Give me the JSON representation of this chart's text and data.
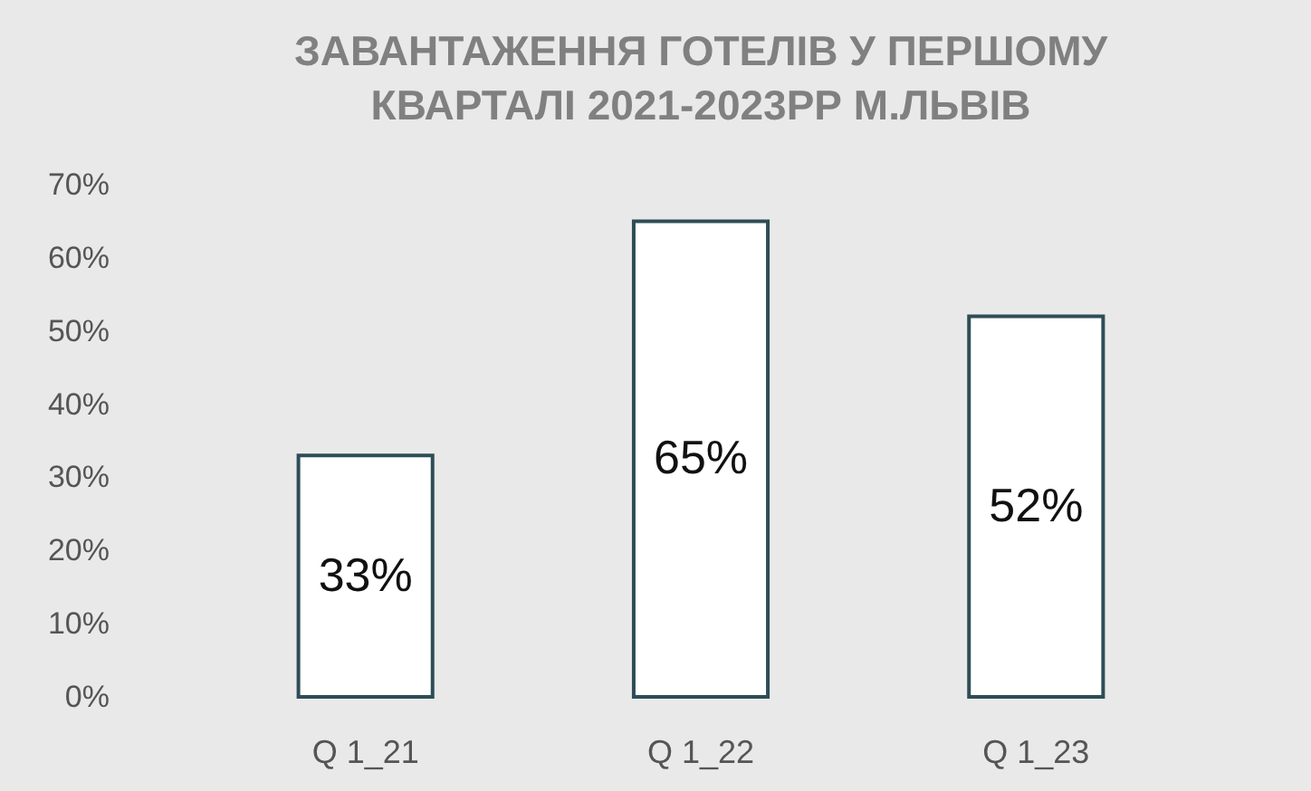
{
  "chart_data": {
    "type": "bar",
    "title": "ЗАВАНТАЖЕННЯ ГОТЕЛІВ У ПЕРШОМУ\nКВАРТАЛІ 2021-2023РР М.ЛЬВІВ",
    "categories": [
      "Q 1_21",
      "Q 1_22",
      "Q 1_23"
    ],
    "values": [
      33,
      65,
      52
    ],
    "color": "#ffffff",
    "value_labels": [
      "33%",
      "65%",
      "52%"
    ],
    "ylim": [
      0,
      70
    ],
    "yticks": [
      {
        "value": 0,
        "label": "0%"
      },
      {
        "value": 10,
        "label": "10%"
      },
      {
        "value": 20,
        "label": "20%"
      },
      {
        "value": 30,
        "label": "30%"
      },
      {
        "value": 40,
        "label": "40%"
      },
      {
        "value": 50,
        "label": "50%"
      },
      {
        "value": 60,
        "label": "60%"
      },
      {
        "value": 70,
        "label": "70%"
      }
    ]
  }
}
